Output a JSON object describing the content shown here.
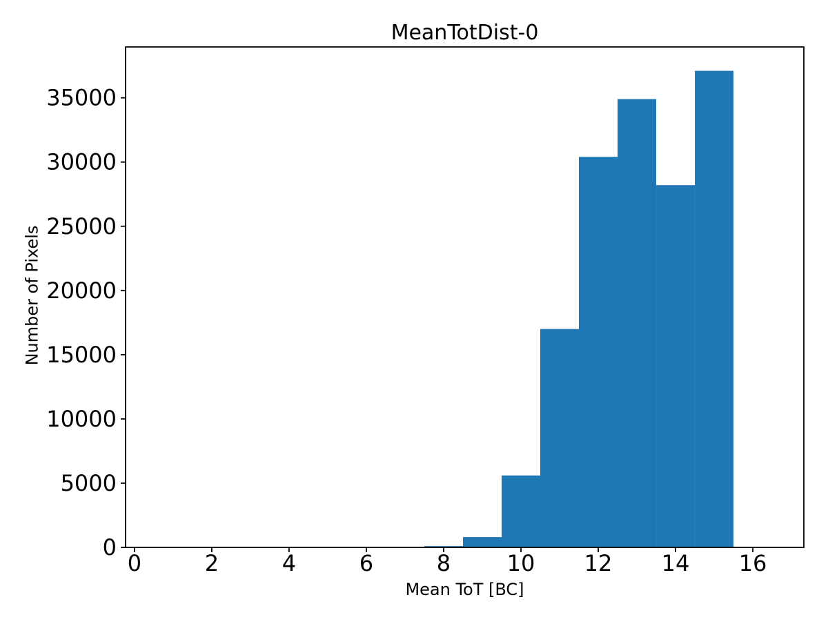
{
  "chart_data": {
    "type": "bar",
    "subtype": "histogram",
    "title": "MeanTotDist-0",
    "xlabel": "Mean ToT [BC]",
    "ylabel": "Number of Pixels",
    "bar_color": "#1f77b4",
    "axis_color": "#000000",
    "background_color": "#ffffff",
    "grid": false,
    "legend_position": "none",
    "bin_edges": [
      0.5,
      1.5,
      2.5,
      3.5,
      4.5,
      5.5,
      6.5,
      7.5,
      8.5,
      9.5,
      10.5,
      11.5,
      12.5,
      13.5,
      14.5,
      15.5,
      16.5
    ],
    "counts": [
      0,
      0,
      0,
      0,
      0,
      0,
      0,
      100,
      800,
      5600,
      17000,
      30400,
      34900,
      28200,
      37100,
      0
    ],
    "xlim": [
      -0.23,
      17.32
    ],
    "ylim": [
      0,
      38960
    ],
    "xticks": [
      0,
      2,
      4,
      6,
      8,
      10,
      12,
      14,
      16
    ],
    "xtick_labels": [
      "0",
      "2",
      "4",
      "6",
      "8",
      "10",
      "12",
      "14",
      "16"
    ],
    "yticks": [
      0,
      5000,
      10000,
      15000,
      20000,
      25000,
      30000,
      35000
    ],
    "ytick_labels": [
      "0",
      "5000",
      "10000",
      "15000",
      "20000",
      "25000",
      "30000",
      "35000"
    ]
  }
}
